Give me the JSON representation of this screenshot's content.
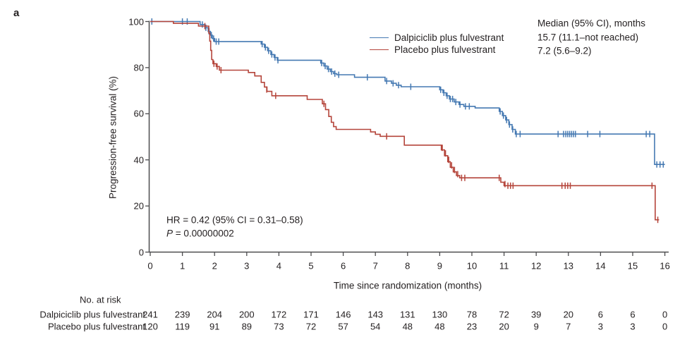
{
  "panel_label": "a",
  "colors": {
    "dalpiciclib": "#4579b2",
    "placebo": "#b5453b",
    "axis": "#4d4d4f",
    "text": "#231f20"
  },
  "legend": {
    "entries": [
      {
        "label": "Dalpiciclib plus fulvestrant",
        "color": "#4579b2"
      },
      {
        "label": "Placebo plus fulvestrant",
        "color": "#b5453b"
      }
    ],
    "median_header": "Median (95% CI), months",
    "median_values": [
      "15.7 (11.1–not reached)",
      "7.2 (5.6–9.2)"
    ]
  },
  "annotations": {
    "hr": "HR = 0.42 (95% CI = 0.31–0.58)",
    "p_label": "P",
    "p_rest": " = 0.00000002"
  },
  "axes": {
    "y_label": "Progression-free survival (%)",
    "x_label": "Time since randomization (months)",
    "y_ticks": [
      0,
      20,
      40,
      60,
      80,
      100
    ],
    "x_ticks": [
      0,
      1,
      2,
      3,
      4,
      5,
      6,
      7,
      8,
      9,
      10,
      11,
      12,
      13,
      14,
      15,
      16
    ]
  },
  "risk_table": {
    "header": "No. at risk",
    "rows": [
      {
        "label": "Dalpiciclib plus fulvestrant",
        "counts": [
          241,
          239,
          204,
          200,
          172,
          171,
          146,
          143,
          131,
          130,
          78,
          72,
          39,
          20,
          6,
          6,
          0
        ]
      },
      {
        "label": "Placebo plus fulvestrant",
        "counts": [
          120,
          119,
          91,
          89,
          73,
          72,
          57,
          54,
          48,
          48,
          23,
          20,
          9,
          7,
          3,
          3,
          0
        ]
      }
    ]
  },
  "chart_data": {
    "type": "line",
    "subtype": "kaplan-meier-step",
    "title": "",
    "xlabel": "Time since randomization (months)",
    "ylabel": "Progression-free survival (%)",
    "xlim": [
      0,
      16.3
    ],
    "ylim": [
      0,
      100
    ],
    "grid": false,
    "legend_position": "top-right",
    "series": [
      {
        "name": "Dalpiciclib plus fulvestrant",
        "color": "#4579b2",
        "end_x": 16.0,
        "steps": [
          [
            0,
            100
          ],
          [
            1.55,
            98.7
          ],
          [
            1.7,
            97.3
          ],
          [
            1.8,
            95.7
          ],
          [
            1.87,
            94.1
          ],
          [
            1.93,
            92.6
          ],
          [
            2.0,
            91.3
          ],
          [
            3.45,
            90.2
          ],
          [
            3.55,
            88.8
          ],
          [
            3.65,
            87.3
          ],
          [
            3.75,
            85.7
          ],
          [
            3.85,
            84.4
          ],
          [
            3.95,
            83.2
          ],
          [
            5.3,
            82.0
          ],
          [
            5.4,
            80.7
          ],
          [
            5.5,
            79.4
          ],
          [
            5.6,
            78.3
          ],
          [
            5.7,
            77.4
          ],
          [
            5.8,
            76.9
          ],
          [
            6.35,
            75.8
          ],
          [
            7.3,
            74.2
          ],
          [
            7.5,
            73.2
          ],
          [
            7.65,
            72.4
          ],
          [
            7.8,
            71.7
          ],
          [
            9.0,
            70.4
          ],
          [
            9.1,
            69.1
          ],
          [
            9.2,
            67.8
          ],
          [
            9.3,
            66.4
          ],
          [
            9.45,
            65.1
          ],
          [
            9.6,
            64.0
          ],
          [
            9.75,
            63.2
          ],
          [
            10.1,
            62.5
          ],
          [
            10.85,
            61.0
          ],
          [
            10.95,
            59.2
          ],
          [
            11.05,
            57.3
          ],
          [
            11.15,
            55.3
          ],
          [
            11.25,
            53.2
          ],
          [
            11.35,
            51.2
          ],
          [
            15.68,
            38.0
          ]
        ],
        "censors": [
          [
            0.05,
            100
          ],
          [
            1.0,
            100
          ],
          [
            1.15,
            100
          ],
          [
            1.62,
            98.7
          ],
          [
            1.73,
            97.3
          ],
          [
            1.83,
            95.7
          ],
          [
            1.9,
            94.1
          ],
          [
            1.97,
            92.6
          ],
          [
            2.05,
            91.3
          ],
          [
            2.13,
            91.3
          ],
          [
            3.48,
            90.2
          ],
          [
            3.58,
            88.8
          ],
          [
            3.68,
            87.3
          ],
          [
            3.78,
            85.7
          ],
          [
            3.88,
            84.4
          ],
          [
            3.97,
            83.2
          ],
          [
            5.33,
            82.0
          ],
          [
            5.44,
            80.7
          ],
          [
            5.54,
            79.4
          ],
          [
            5.64,
            78.3
          ],
          [
            5.74,
            77.4
          ],
          [
            5.86,
            76.9
          ],
          [
            6.75,
            75.8
          ],
          [
            7.35,
            74.2
          ],
          [
            7.55,
            73.2
          ],
          [
            7.72,
            72.4
          ],
          [
            8.1,
            71.7
          ],
          [
            9.03,
            70.4
          ],
          [
            9.13,
            69.1
          ],
          [
            9.23,
            67.8
          ],
          [
            9.33,
            66.4
          ],
          [
            9.4,
            66.4
          ],
          [
            9.5,
            65.1
          ],
          [
            9.63,
            64.0
          ],
          [
            9.8,
            63.2
          ],
          [
            9.92,
            63.2
          ],
          [
            10.88,
            61.0
          ],
          [
            10.98,
            59.2
          ],
          [
            11.08,
            57.3
          ],
          [
            11.17,
            55.3
          ],
          [
            11.27,
            53.2
          ],
          [
            11.38,
            51.2
          ],
          [
            11.5,
            51.2
          ],
          [
            12.68,
            51.2
          ],
          [
            12.85,
            51.2
          ],
          [
            12.92,
            51.2
          ],
          [
            12.98,
            51.2
          ],
          [
            13.04,
            51.2
          ],
          [
            13.1,
            51.2
          ],
          [
            13.16,
            51.2
          ],
          [
            13.22,
            51.2
          ],
          [
            13.6,
            51.2
          ],
          [
            13.98,
            51.2
          ],
          [
            15.42,
            51.2
          ],
          [
            15.53,
            51.2
          ],
          [
            15.75,
            38.0
          ],
          [
            15.85,
            38.0
          ],
          [
            15.95,
            38.0
          ]
        ]
      },
      {
        "name": "Placebo plus fulvestrant",
        "color": "#b5453b",
        "end_x": 15.82,
        "steps": [
          [
            0,
            100
          ],
          [
            0.72,
            99.2
          ],
          [
            1.5,
            98.0
          ],
          [
            1.82,
            95.0
          ],
          [
            1.85,
            91.5
          ],
          [
            1.88,
            87.5
          ],
          [
            1.91,
            83.5
          ],
          [
            1.95,
            81.7
          ],
          [
            2.05,
            80.5
          ],
          [
            2.15,
            78.9
          ],
          [
            3.05,
            77.9
          ],
          [
            3.25,
            76.4
          ],
          [
            3.45,
            73.6
          ],
          [
            3.55,
            71.6
          ],
          [
            3.63,
            69.7
          ],
          [
            3.78,
            67.8
          ],
          [
            4.88,
            66.2
          ],
          [
            5.35,
            64.3
          ],
          [
            5.45,
            61.8
          ],
          [
            5.55,
            58.8
          ],
          [
            5.63,
            56.3
          ],
          [
            5.7,
            54.4
          ],
          [
            5.78,
            53.2
          ],
          [
            6.85,
            52.1
          ],
          [
            7.0,
            51.1
          ],
          [
            7.15,
            50.2
          ],
          [
            7.9,
            46.4
          ],
          [
            9.05,
            44.3
          ],
          [
            9.15,
            41.8
          ],
          [
            9.25,
            39.2
          ],
          [
            9.33,
            36.8
          ],
          [
            9.42,
            34.8
          ],
          [
            9.52,
            33.2
          ],
          [
            9.62,
            32.2
          ],
          [
            10.9,
            30.3
          ],
          [
            11.0,
            28.8
          ],
          [
            15.7,
            14.0
          ]
        ],
        "censors": [
          [
            1.7,
            98.0
          ],
          [
            1.98,
            81.7
          ],
          [
            2.08,
            80.5
          ],
          [
            2.2,
            78.9
          ],
          [
            3.62,
            70.5
          ],
          [
            3.9,
            67.8
          ],
          [
            5.4,
            64.3
          ],
          [
            7.35,
            50.2
          ],
          [
            9.08,
            45.2
          ],
          [
            9.18,
            42.8
          ],
          [
            9.28,
            40.0
          ],
          [
            9.37,
            37.6
          ],
          [
            9.46,
            35.6
          ],
          [
            9.56,
            33.8
          ],
          [
            9.68,
            32.2
          ],
          [
            9.78,
            32.2
          ],
          [
            10.85,
            32.2
          ],
          [
            11.03,
            29.5
          ],
          [
            11.12,
            28.8
          ],
          [
            11.2,
            28.8
          ],
          [
            11.28,
            28.8
          ],
          [
            12.8,
            28.8
          ],
          [
            12.9,
            28.8
          ],
          [
            12.98,
            28.8
          ],
          [
            13.06,
            28.8
          ],
          [
            15.6,
            28.8
          ],
          [
            15.78,
            14.0
          ]
        ]
      }
    ]
  }
}
